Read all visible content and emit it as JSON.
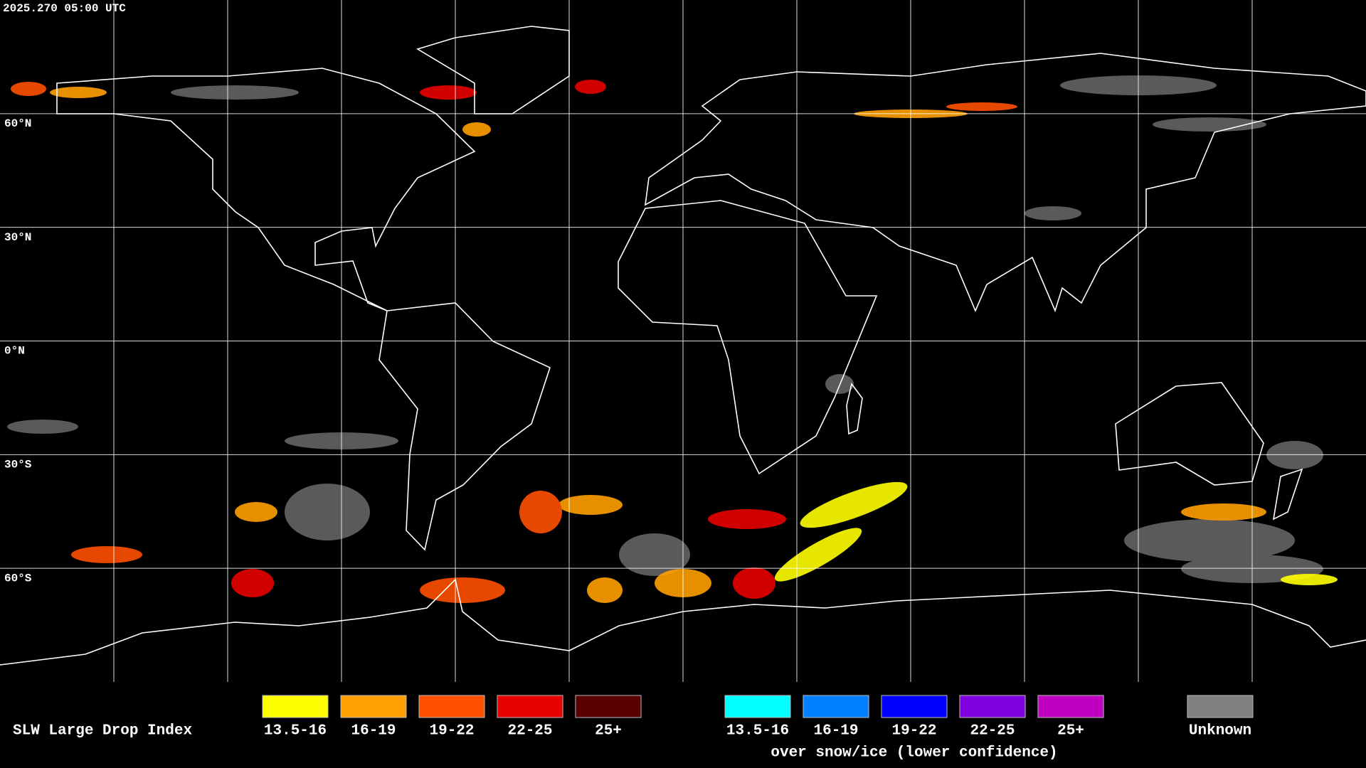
{
  "timestamp": "2025.270 05:00 UTC",
  "lat_labels": [
    "60°N",
    "30°N",
    "0°N",
    "30°S",
    "60°S"
  ],
  "legend": {
    "title": "SLW Large Drop Index",
    "groups": [
      {
        "items": [
          {
            "label": "13.5-16",
            "color": "#ffff00"
          },
          {
            "label": "16-19",
            "color": "#ffa000"
          },
          {
            "label": "19-22",
            "color": "#ff5000"
          },
          {
            "label": "22-25",
            "color": "#e80000"
          },
          {
            "label": "25+",
            "color": "#5a0000"
          }
        ]
      },
      {
        "items": [
          {
            "label": "13.5-16",
            "color": "#00ffff"
          },
          {
            "label": "16-19",
            "color": "#0080ff"
          },
          {
            "label": "19-22",
            "color": "#0000ff"
          },
          {
            "label": "22-25",
            "color": "#8000e0"
          },
          {
            "label": "25+",
            "color": "#c000c0"
          }
        ],
        "caption": "over snow/ice (lower confidence)"
      },
      {
        "items": [
          {
            "label": "Unknown",
            "color": "#808080"
          }
        ]
      }
    ]
  }
}
